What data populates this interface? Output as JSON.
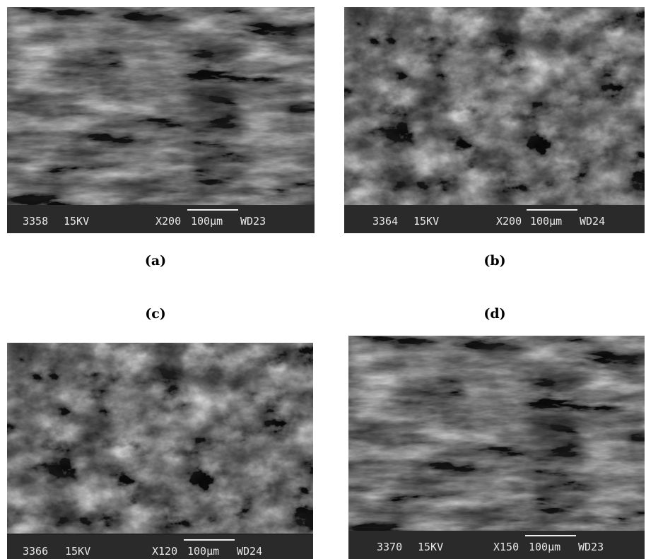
{
  "panels": [
    {
      "caption": "(a)",
      "info": {
        "id": "3358",
        "voltage": "15KV",
        "magnification": "X200",
        "scale": "100µm",
        "distance": "WD23"
      }
    },
    {
      "caption": "(b)",
      "info": {
        "id": "3364",
        "voltage": "15KV",
        "magnification": "X200",
        "scale": "100µm",
        "distance": "WD24"
      }
    },
    {
      "caption": "(c)",
      "info": {
        "id": "3366",
        "voltage": "15KV",
        "magnification": "X120",
        "scale": "100µm",
        "distance": "WD24"
      }
    },
    {
      "caption": "(d)",
      "info": {
        "id": "3370",
        "voltage": "15KV",
        "magnification": "X150",
        "scale": "100µm",
        "distance": "WD23"
      }
    }
  ]
}
